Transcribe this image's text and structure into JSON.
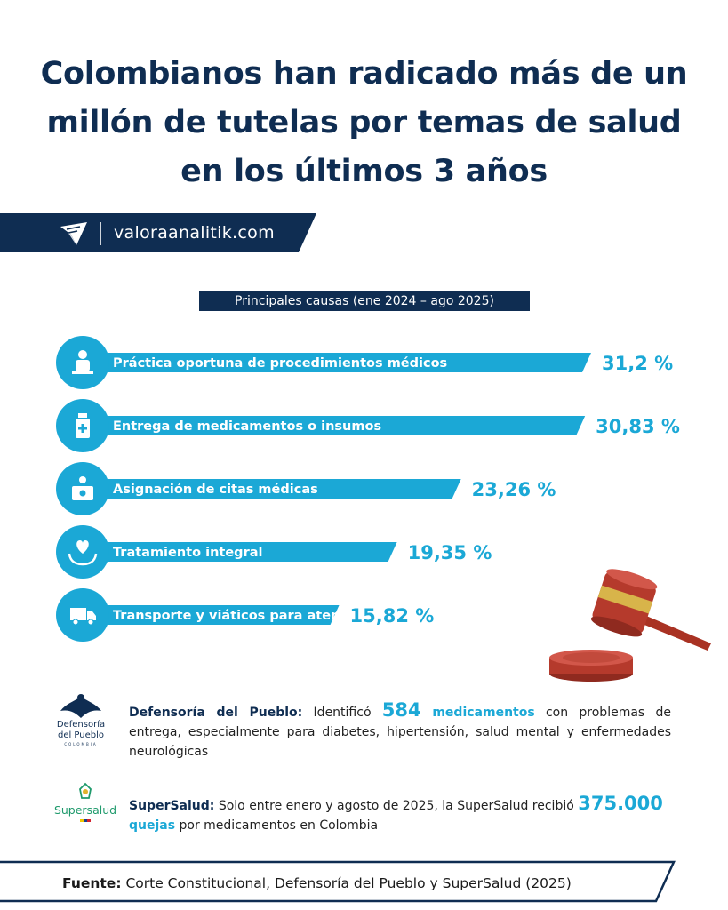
{
  "title": {
    "line1": "Colombianos han radicado más de un",
    "line2": "millón de tutelas por temas de salud",
    "line3": "en los últimos 3 años"
  },
  "website": "valoraanalitik.com",
  "colors": {
    "navy": "#0f2d52",
    "accent": "#1ba8d6",
    "gavel": "#b53a2c"
  },
  "chart_data": {
    "type": "bar",
    "title": "Principales causas (ene 2024 – ago 2025)",
    "categories": [
      "Práctica oportuna de procedimientos médicos",
      "Entrega de medicamentos o insumos",
      "Asignación de citas médicas",
      "Tratamiento integral",
      "Transporte y viáticos para atención"
    ],
    "values": [
      31.2,
      30.83,
      23.26,
      19.35,
      15.82
    ],
    "value_labels": [
      "31,2 %",
      "30,83 %",
      "23,26 %",
      "19,35 %",
      "15,82 %"
    ],
    "icons": [
      "doctor-icon",
      "medicine-bottle-icon",
      "doctor-desk-icon",
      "heart-hands-icon",
      "ambulance-truck-icon"
    ],
    "orientation": "horizontal",
    "unit": "%"
  },
  "defensoria": {
    "logo_line1": "Defensoría",
    "logo_line2": "del Pueblo",
    "logo_line3": "COLOMBIA",
    "lead": "Defensoría del Pueblo:",
    "text1": " Identificó ",
    "number": "584",
    "highlight": " medicamentos",
    "text2": " con problemas de entrega, especialmente para diabetes, hipertensión, salud mental y enfermedades neurológicas"
  },
  "supersalud": {
    "logo_text": "Supersalud",
    "lead": "SuperSalud:",
    "text1": "  Solo entre enero y agosto de 2025, la SuperSalud recibió ",
    "number": "375.000",
    "highlight": " quejas",
    "text2": " por medicamentos en Colombia"
  },
  "footer": {
    "label": "Fuente:",
    "text": " Corte Constitucional, Defensoría del Pueblo y SuperSalud (2025)"
  }
}
